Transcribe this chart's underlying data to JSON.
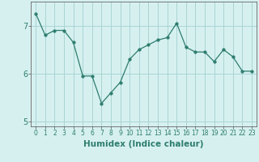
{
  "x": [
    0,
    1,
    2,
    3,
    4,
    5,
    6,
    7,
    8,
    9,
    10,
    11,
    12,
    13,
    14,
    15,
    16,
    17,
    18,
    19,
    20,
    21,
    22,
    23
  ],
  "y": [
    7.25,
    6.8,
    6.9,
    6.9,
    6.65,
    5.95,
    5.95,
    5.38,
    5.6,
    5.82,
    6.3,
    6.5,
    6.6,
    6.7,
    6.75,
    7.05,
    6.55,
    6.45,
    6.45,
    6.25,
    6.5,
    6.35,
    6.05,
    6.05
  ],
  "ylim": [
    4.9,
    7.5
  ],
  "yticks": [
    5,
    6,
    7
  ],
  "xlabel": "Humidex (Indice chaleur)",
  "line_color": "#2e7d6e",
  "marker": "o",
  "marker_size": 2.5,
  "bg_color": "#d6f0f0",
  "grid_color": "#aad4d4",
  "axis_color": "#666666",
  "tick_label_color": "#2e7d6e",
  "xlabel_fontsize": 7.5,
  "tick_fontsize": 5.5,
  "ytick_fontsize": 7
}
